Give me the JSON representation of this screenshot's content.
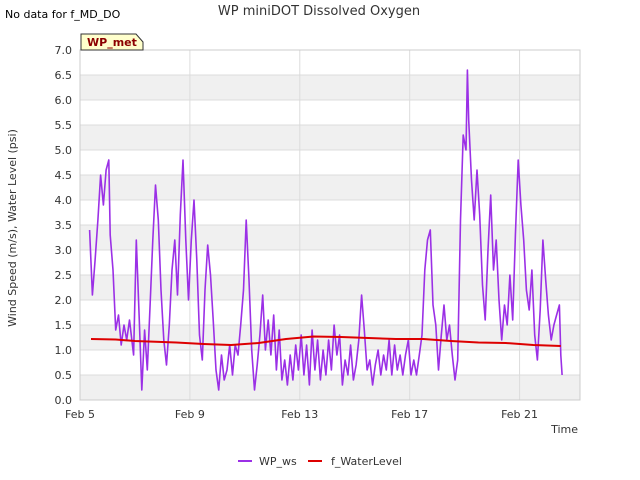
{
  "note": "No data for f_MD_DO",
  "tag": "WP_met",
  "colors": {
    "ws": "#9b30e6",
    "wl": "#dd0000",
    "band": "#f0f0f0",
    "grid": "#dcdcdc",
    "tag_bg": "#ffffcc"
  },
  "chart_data": {
    "type": "line",
    "title": "WP miniDOT Dissolved Oxygen",
    "xlabel": "Time",
    "ylabel": "Wind Speed (m/s), Water Level (psi)",
    "xlim": [
      0,
      18.2
    ],
    "ylim": [
      0,
      7.0
    ],
    "x_unit": "days since Feb 5",
    "x_ticks": [
      {
        "x": 0,
        "label": "Feb 5"
      },
      {
        "x": 4,
        "label": "Feb 9"
      },
      {
        "x": 8,
        "label": "Feb 13"
      },
      {
        "x": 12,
        "label": "Feb 17"
      },
      {
        "x": 16,
        "label": "Feb 21"
      }
    ],
    "y_ticks": [
      "0.0",
      "0.5",
      "1.0",
      "1.5",
      "2.0",
      "2.5",
      "3.0",
      "3.5",
      "4.0",
      "4.5",
      "5.0",
      "5.5",
      "6.0",
      "6.5",
      "7.0"
    ],
    "grid": true,
    "legend_position": "bottom",
    "series": [
      {
        "name": "WP_ws",
        "color": "#9b30e6",
        "points": [
          [
            0.35,
            3.4
          ],
          [
            0.45,
            2.1
          ],
          [
            0.55,
            2.8
          ],
          [
            0.65,
            3.6
          ],
          [
            0.75,
            4.5
          ],
          [
            0.85,
            3.9
          ],
          [
            0.95,
            4.6
          ],
          [
            1.05,
            4.8
          ],
          [
            1.1,
            3.3
          ],
          [
            1.2,
            2.6
          ],
          [
            1.3,
            1.4
          ],
          [
            1.4,
            1.7
          ],
          [
            1.5,
            1.1
          ],
          [
            1.6,
            1.5
          ],
          [
            1.7,
            1.2
          ],
          [
            1.8,
            1.6
          ],
          [
            1.95,
            0.9
          ],
          [
            2.05,
            3.2
          ],
          [
            2.15,
            1.7
          ],
          [
            2.25,
            0.2
          ],
          [
            2.35,
            1.4
          ],
          [
            2.45,
            0.6
          ],
          [
            2.55,
            1.9
          ],
          [
            2.65,
            3.2
          ],
          [
            2.75,
            4.3
          ],
          [
            2.85,
            3.6
          ],
          [
            2.95,
            2.2
          ],
          [
            3.05,
            1.2
          ],
          [
            3.15,
            0.7
          ],
          [
            3.25,
            1.5
          ],
          [
            3.35,
            2.6
          ],
          [
            3.45,
            3.2
          ],
          [
            3.55,
            2.1
          ],
          [
            3.65,
            3.7
          ],
          [
            3.75,
            4.8
          ],
          [
            3.85,
            3.2
          ],
          [
            3.95,
            2.0
          ],
          [
            4.05,
            3.2
          ],
          [
            4.15,
            4.0
          ],
          [
            4.25,
            2.8
          ],
          [
            4.35,
            1.3
          ],
          [
            4.45,
            0.8
          ],
          [
            4.55,
            2.2
          ],
          [
            4.65,
            3.1
          ],
          [
            4.75,
            2.5
          ],
          [
            4.85,
            1.6
          ],
          [
            4.95,
            0.6
          ],
          [
            5.05,
            0.2
          ],
          [
            5.15,
            0.9
          ],
          [
            5.25,
            0.4
          ],
          [
            5.35,
            0.6
          ],
          [
            5.45,
            1.1
          ],
          [
            5.55,
            0.5
          ],
          [
            5.65,
            1.1
          ],
          [
            5.75,
            0.9
          ],
          [
            5.85,
            1.5
          ],
          [
            5.95,
            2.2
          ],
          [
            6.05,
            3.6
          ],
          [
            6.15,
            2.4
          ],
          [
            6.25,
            1.0
          ],
          [
            6.35,
            0.2
          ],
          [
            6.45,
            0.7
          ],
          [
            6.55,
            1.3
          ],
          [
            6.65,
            2.1
          ],
          [
            6.75,
            1.0
          ],
          [
            6.85,
            1.6
          ],
          [
            6.95,
            0.9
          ],
          [
            7.05,
            1.7
          ],
          [
            7.15,
            0.6
          ],
          [
            7.25,
            1.4
          ],
          [
            7.35,
            0.4
          ],
          [
            7.45,
            0.8
          ],
          [
            7.55,
            0.3
          ],
          [
            7.65,
            0.9
          ],
          [
            7.75,
            0.4
          ],
          [
            7.85,
            1.1
          ],
          [
            7.95,
            0.6
          ],
          [
            8.05,
            1.3
          ],
          [
            8.15,
            0.5
          ],
          [
            8.25,
            1.1
          ],
          [
            8.35,
            0.3
          ],
          [
            8.45,
            1.4
          ],
          [
            8.55,
            0.6
          ],
          [
            8.65,
            1.2
          ],
          [
            8.75,
            0.4
          ],
          [
            8.85,
            1.0
          ],
          [
            8.95,
            0.5
          ],
          [
            9.05,
            1.2
          ],
          [
            9.15,
            0.6
          ],
          [
            9.25,
            1.5
          ],
          [
            9.35,
            0.9
          ],
          [
            9.45,
            1.3
          ],
          [
            9.55,
            0.3
          ],
          [
            9.65,
            0.8
          ],
          [
            9.75,
            0.5
          ],
          [
            9.85,
            1.1
          ],
          [
            9.95,
            0.4
          ],
          [
            10.05,
            0.7
          ],
          [
            10.15,
            1.2
          ],
          [
            10.25,
            2.1
          ],
          [
            10.35,
            1.4
          ],
          [
            10.45,
            0.6
          ],
          [
            10.55,
            0.8
          ],
          [
            10.65,
            0.3
          ],
          [
            10.75,
            0.7
          ],
          [
            10.85,
            1.0
          ],
          [
            10.95,
            0.5
          ],
          [
            11.05,
            0.9
          ],
          [
            11.15,
            0.6
          ],
          [
            11.25,
            1.2
          ],
          [
            11.35,
            0.5
          ],
          [
            11.45,
            1.1
          ],
          [
            11.55,
            0.6
          ],
          [
            11.65,
            0.9
          ],
          [
            11.75,
            0.5
          ],
          [
            11.85,
            0.9
          ],
          [
            11.95,
            1.2
          ],
          [
            12.05,
            0.5
          ],
          [
            12.15,
            0.8
          ],
          [
            12.25,
            0.5
          ],
          [
            12.35,
            0.9
          ],
          [
            12.45,
            1.3
          ],
          [
            12.55,
            2.6
          ],
          [
            12.65,
            3.2
          ],
          [
            12.75,
            3.4
          ],
          [
            12.85,
            1.9
          ],
          [
            12.95,
            1.5
          ],
          [
            13.05,
            0.6
          ],
          [
            13.15,
            1.3
          ],
          [
            13.25,
            1.9
          ],
          [
            13.35,
            1.2
          ],
          [
            13.45,
            1.5
          ],
          [
            13.55,
            0.9
          ],
          [
            13.65,
            0.4
          ],
          [
            13.75,
            0.8
          ],
          [
            13.85,
            3.6
          ],
          [
            13.95,
            5.3
          ],
          [
            14.05,
            5.0
          ],
          [
            14.1,
            6.6
          ],
          [
            14.15,
            5.6
          ],
          [
            14.25,
            4.4
          ],
          [
            14.35,
            3.6
          ],
          [
            14.45,
            4.6
          ],
          [
            14.55,
            3.7
          ],
          [
            14.65,
            2.3
          ],
          [
            14.75,
            1.6
          ],
          [
            14.85,
            3.0
          ],
          [
            14.95,
            4.1
          ],
          [
            15.05,
            2.6
          ],
          [
            15.15,
            3.2
          ],
          [
            15.25,
            2.0
          ],
          [
            15.35,
            1.2
          ],
          [
            15.45,
            1.9
          ],
          [
            15.55,
            1.5
          ],
          [
            15.65,
            2.5
          ],
          [
            15.75,
            1.6
          ],
          [
            15.85,
            3.3
          ],
          [
            15.95,
            4.8
          ],
          [
            16.05,
            3.9
          ],
          [
            16.15,
            3.2
          ],
          [
            16.25,
            2.2
          ],
          [
            16.35,
            1.8
          ],
          [
            16.45,
            2.6
          ],
          [
            16.55,
            1.3
          ],
          [
            16.65,
            0.8
          ],
          [
            16.75,
            1.8
          ],
          [
            16.85,
            3.2
          ],
          [
            16.95,
            2.4
          ],
          [
            17.05,
            1.7
          ],
          [
            17.15,
            1.2
          ],
          [
            17.25,
            1.5
          ],
          [
            17.35,
            1.7
          ],
          [
            17.45,
            1.9
          ],
          [
            17.5,
            0.9
          ],
          [
            17.55,
            0.5
          ]
        ]
      },
      {
        "name": "f_WaterLevel",
        "color": "#dd0000",
        "points": [
          [
            0.4,
            1.22
          ],
          [
            1.3,
            1.21
          ],
          [
            2.0,
            1.18
          ],
          [
            3.5,
            1.15
          ],
          [
            4.5,
            1.12
          ],
          [
            5.5,
            1.1
          ],
          [
            6.5,
            1.14
          ],
          [
            7.5,
            1.22
          ],
          [
            8.5,
            1.27
          ],
          [
            9.5,
            1.26
          ],
          [
            10.5,
            1.24
          ],
          [
            11.5,
            1.22
          ],
          [
            12.5,
            1.22
          ],
          [
            13.5,
            1.18
          ],
          [
            14.5,
            1.15
          ],
          [
            15.5,
            1.14
          ],
          [
            16.5,
            1.1
          ],
          [
            17.5,
            1.08
          ]
        ]
      }
    ]
  }
}
